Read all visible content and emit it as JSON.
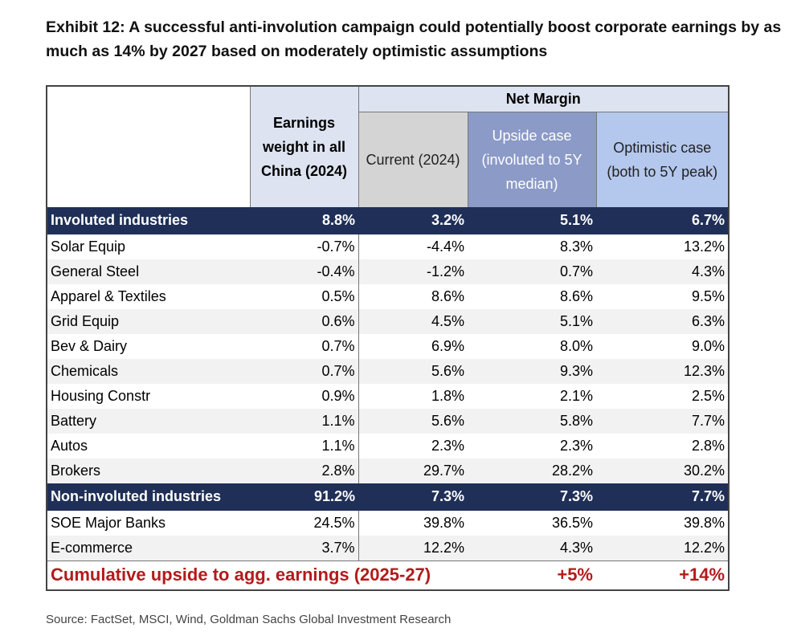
{
  "title": "Exhibit 12: A successful anti-involution campaign could potentially boost corporate earnings by as much as 14% by 2027 based on moderately optimistic assumptions",
  "header": {
    "earnings_weight": "Earnings weight in all China (2024)",
    "net_margin": "Net Margin",
    "current": "Current (2024)",
    "upside": "Upside case (involuted to 5Y median)",
    "optimistic": "Optimistic case (both to 5Y peak)"
  },
  "involuted": {
    "label": "Involuted industries",
    "weight": "8.8%",
    "current": "3.2%",
    "upside": "5.1%",
    "optimistic": "6.7%",
    "rows": [
      {
        "name": "Solar Equip",
        "weight": "-0.7%",
        "current": "-4.4%",
        "upside": "8.3%",
        "optimistic": "13.2%"
      },
      {
        "name": "General Steel",
        "weight": "-0.4%",
        "current": "-1.2%",
        "upside": "0.7%",
        "optimistic": "4.3%"
      },
      {
        "name": "Apparel & Textiles",
        "weight": "0.5%",
        "current": "8.6%",
        "upside": "8.6%",
        "optimistic": "9.5%"
      },
      {
        "name": "Grid Equip",
        "weight": "0.6%",
        "current": "4.5%",
        "upside": "5.1%",
        "optimistic": "6.3%"
      },
      {
        "name": "Bev & Dairy",
        "weight": "0.7%",
        "current": "6.9%",
        "upside": "8.0%",
        "optimistic": "9.0%"
      },
      {
        "name": "Chemicals",
        "weight": "0.7%",
        "current": "5.6%",
        "upside": "9.3%",
        "optimistic": "12.3%"
      },
      {
        "name": "Housing Constr",
        "weight": "0.9%",
        "current": "1.8%",
        "upside": "2.1%",
        "optimistic": "2.5%"
      },
      {
        "name": "Battery",
        "weight": "1.1%",
        "current": "5.6%",
        "upside": "5.8%",
        "optimistic": "7.7%"
      },
      {
        "name": "Autos",
        "weight": "1.1%",
        "current": "2.3%",
        "upside": "2.3%",
        "optimistic": "2.8%"
      },
      {
        "name": "Brokers",
        "weight": "2.8%",
        "current": "29.7%",
        "upside": "28.2%",
        "optimistic": "30.2%"
      }
    ]
  },
  "non_involuted": {
    "label": "Non-involuted industries",
    "weight": "91.2%",
    "current": "7.3%",
    "upside": "7.3%",
    "optimistic": "7.7%",
    "rows": [
      {
        "name": "SOE Major Banks",
        "weight": "24.5%",
        "current": "39.8%",
        "upside": "36.5%",
        "optimistic": "39.8%"
      },
      {
        "name": "E-commerce",
        "weight": "3.7%",
        "current": "12.2%",
        "upside": "4.3%",
        "optimistic": "12.2%"
      }
    ]
  },
  "cumulative": {
    "label": "Cumulative upside to agg. earnings (2025-27)",
    "upside": "+5%",
    "optimistic": "+14%"
  },
  "source": "Source: FactSet, MSCI, Wind, Goldman Sachs Global Investment Research"
}
